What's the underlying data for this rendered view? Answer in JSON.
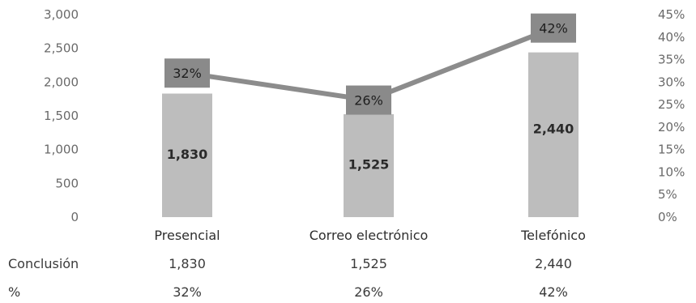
{
  "chart_data": {
    "type": "bar",
    "categories": [
      "Presencial",
      "Correo electrónico",
      "Telefónico"
    ],
    "series": [
      {
        "name": "Conclusión",
        "type": "bar",
        "axis": "left",
        "values": [
          1830,
          1525,
          2440
        ],
        "labels": [
          "1,830",
          "1,525",
          "2,440"
        ]
      },
      {
        "name": "%",
        "type": "line",
        "axis": "right",
        "values": [
          32,
          26,
          42
        ],
        "labels": [
          "32%",
          "26%",
          "42%"
        ]
      }
    ],
    "y_left": {
      "ylim": [
        0,
        3000
      ],
      "ticks": [
        "0",
        "500",
        "1,000",
        "1,500",
        "2,000",
        "2,500",
        "3,000"
      ]
    },
    "y_right": {
      "ylim": [
        0,
        45
      ],
      "ticks": [
        "0%",
        "5%",
        "10%",
        "15%",
        "20%",
        "25%",
        "30%",
        "35%",
        "40%",
        "45%"
      ]
    },
    "data_table": {
      "rows": [
        {
          "label": "Conclusión",
          "cells": [
            "1,830",
            "1,525",
            "2,440"
          ]
        },
        {
          "label": "%",
          "cells": [
            "32%",
            "26%",
            "42%"
          ]
        }
      ]
    },
    "colors": {
      "bar": "#bdbdbd",
      "line": "#8c8c8c",
      "label_box": "#8a8a8a"
    },
    "legend": "none",
    "grid": false
  }
}
